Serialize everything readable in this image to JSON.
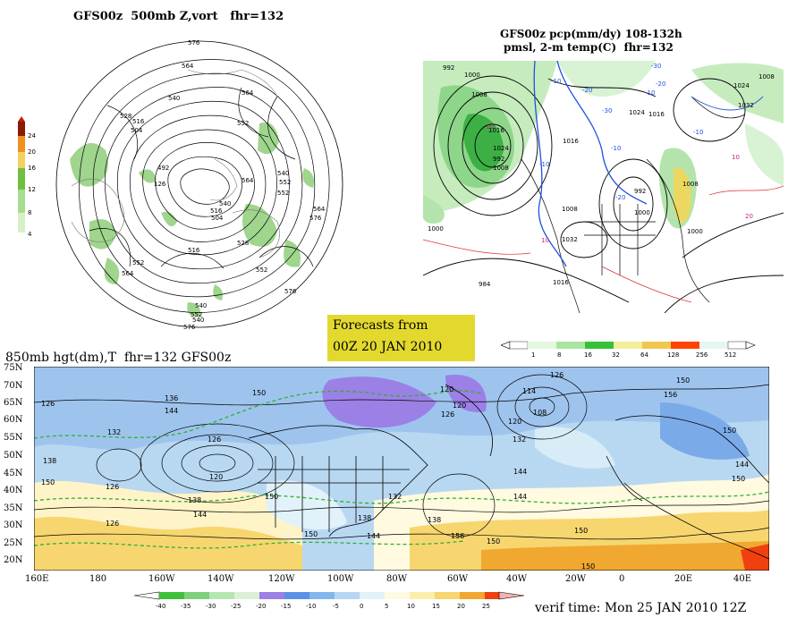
{
  "panel_500mb": {
    "title": "GFS00z  500mb Z,vort   fhr=132",
    "legend_values": [
      "24",
      "20",
      "16",
      "12",
      "8",
      "4"
    ],
    "legend_colors": [
      "#8b1a00",
      "#f09020",
      "#f4d060",
      "#70c040",
      "#a8dc90",
      "#d8f0c8"
    ],
    "contour_labels": [
      "576",
      "564",
      "564",
      "540",
      "552",
      "528",
      "516",
      "504",
      "492",
      "126",
      "540",
      "552",
      "564",
      "576",
      "564",
      "552",
      "540",
      "516",
      "504",
      "552",
      "564",
      "576",
      "540",
      "552",
      "528",
      "516",
      "576",
      "552",
      "540"
    ]
  },
  "panel_precip": {
    "title_line1": "GFS00z pcp(mm/dy) 108-132h",
    "title_line2": "pmsl, 2-m temp(C)  fhr=132",
    "pressure_labels": [
      "992",
      "1000",
      "1008",
      "1016",
      "1024",
      "992",
      "1008",
      "1000",
      "984",
      "1016",
      "1008",
      "1032",
      "1024",
      "1016",
      "1000",
      "992",
      "1008",
      "1000",
      "1016",
      "1008",
      "1032",
      "1024"
    ],
    "temp_labels": [
      "-10",
      "-20",
      "-30",
      "-10",
      "10",
      "10",
      "-10",
      "-20",
      "20",
      "10",
      "-10",
      "-20",
      "-30",
      "-10"
    ],
    "scale_values": [
      "1",
      "8",
      "16",
      "32",
      "64",
      "128",
      "256",
      "512"
    ],
    "scale_colors": [
      "#e4f7df",
      "#a8e6a0",
      "#38c038",
      "#f2ee9a",
      "#f0c850",
      "#ff9410",
      "#ff4400",
      "#e6f6f2"
    ]
  },
  "forecast_box": {
    "line1": "Forecasts from",
    "line2": "00Z 20 JAN 2010"
  },
  "panel_850mb": {
    "title": "850mb hgt(dm),T  fhr=132 GFS00z",
    "lat_labels": [
      "75N",
      "70N",
      "65N",
      "60N",
      "55N",
      "50N",
      "45N",
      "40N",
      "35N",
      "30N",
      "25N",
      "20N"
    ],
    "lon_labels": [
      "160E",
      "180",
      "160W",
      "140W",
      "120W",
      "100W",
      "80W",
      "60W",
      "40W",
      "20W",
      "0",
      "20E",
      "40E"
    ],
    "height_labels": [
      "126",
      "136",
      "144",
      "132",
      "138",
      "150",
      "126",
      "120",
      "138",
      "126",
      "144",
      "150",
      "126",
      "120",
      "150",
      "150",
      "126",
      "132",
      "144",
      "138",
      "144",
      "150",
      "120",
      "126",
      "114",
      "108",
      "120",
      "132",
      "138",
      "144",
      "156",
      "150",
      "150",
      "156",
      "150",
      "144",
      "150",
      "150"
    ],
    "scale_values": [
      "-40",
      "-35",
      "-30",
      "-25",
      "-20",
      "-15",
      "-10",
      "-5",
      "0",
      "5",
      "10",
      "15",
      "20",
      "25"
    ],
    "scale_colors": [
      "#3ec03a",
      "#7ed07a",
      "#b6e6b0",
      "#dcefd8",
      "#9b80e6",
      "#5a92e6",
      "#82b6ee",
      "#b6d6f4",
      "#e2f2fa",
      "#fffae0",
      "#fbeeaa",
      "#f7d670",
      "#f0a830",
      "#f04010"
    ],
    "verif_time": "verif time: Mon 25 JAN 2010 12Z"
  }
}
